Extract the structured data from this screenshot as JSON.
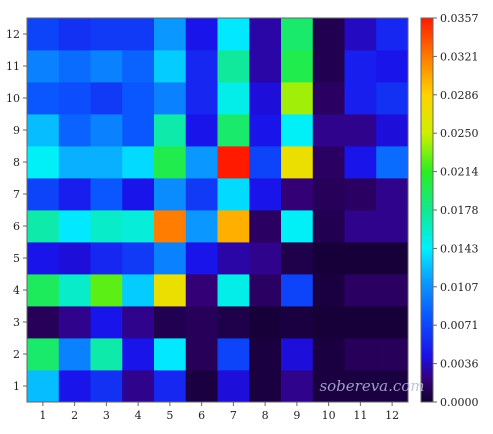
{
  "chart_data": {
    "type": "heatmap",
    "x_categories": [
      "1",
      "2",
      "3",
      "4",
      "5",
      "6",
      "7",
      "8",
      "9",
      "10",
      "11",
      "12"
    ],
    "y_categories": [
      "1",
      "2",
      "3",
      "4",
      "5",
      "6",
      "7",
      "8",
      "9",
      "10",
      "11",
      "12"
    ],
    "zlim": [
      0.0,
      0.0357
    ],
    "colormap": "rainbow: black-purple, blue, cyan, green, yellow, orange, red",
    "colorbar_ticks": [
      "0.0357",
      "0.0321",
      "0.0286",
      "0.0250",
      "0.0214",
      "0.0178",
      "0.0143",
      "0.0107",
      "0.0071",
      "0.0036",
      "0.0000"
    ],
    "watermark": "sobereva.com",
    "values_rows_y1_to_y12": [
      [
        0.0125,
        0.0045,
        0.006,
        0.0025,
        0.0055,
        0.0005,
        0.004,
        0.0005,
        0.0025,
        0.0005,
        0.0005,
        0.0005
      ],
      [
        0.019,
        0.01,
        0.017,
        0.0045,
        0.014,
        0.0012,
        0.007,
        0.0005,
        0.004,
        0.0005,
        0.0012,
        0.0012
      ],
      [
        0.0012,
        0.0025,
        0.0045,
        0.0025,
        0.001,
        0.0012,
        0.0008,
        0.0003,
        0.0005,
        0.0003,
        0.0003,
        0.0003
      ],
      [
        0.0195,
        0.016,
        0.0225,
        0.013,
        0.027,
        0.002,
        0.015,
        0.0015,
        0.007,
        0.0005,
        0.0015,
        0.0015
      ],
      [
        0.0045,
        0.004,
        0.0055,
        0.0065,
        0.01,
        0.0045,
        0.003,
        0.0025,
        0.0008,
        0.0003,
        0.0003,
        0.0003
      ],
      [
        0.017,
        0.014,
        0.016,
        0.0155,
        0.032,
        0.011,
        0.03,
        0.0015,
        0.0145,
        0.001,
        0.0025,
        0.0025
      ],
      [
        0.007,
        0.005,
        0.008,
        0.0045,
        0.0105,
        0.0065,
        0.0135,
        0.0045,
        0.002,
        0.0012,
        0.0015,
        0.0025
      ],
      [
        0.0145,
        0.012,
        0.012,
        0.0135,
        0.02,
        0.011,
        0.0357,
        0.007,
        0.027,
        0.0015,
        0.0045,
        0.009
      ],
      [
        0.0125,
        0.0085,
        0.01,
        0.008,
        0.017,
        0.0045,
        0.019,
        0.0045,
        0.0145,
        0.0025,
        0.0025,
        0.004
      ],
      [
        0.008,
        0.0075,
        0.0065,
        0.008,
        0.01,
        0.0055,
        0.015,
        0.004,
        0.024,
        0.0015,
        0.005,
        0.006
      ],
      [
        0.01,
        0.009,
        0.01,
        0.0085,
        0.013,
        0.0055,
        0.0175,
        0.003,
        0.02,
        0.001,
        0.005,
        0.0045
      ],
      [
        0.007,
        0.006,
        0.0065,
        0.0065,
        0.011,
        0.0045,
        0.014,
        0.003,
        0.019,
        0.001,
        0.0035,
        0.0055
      ]
    ]
  }
}
